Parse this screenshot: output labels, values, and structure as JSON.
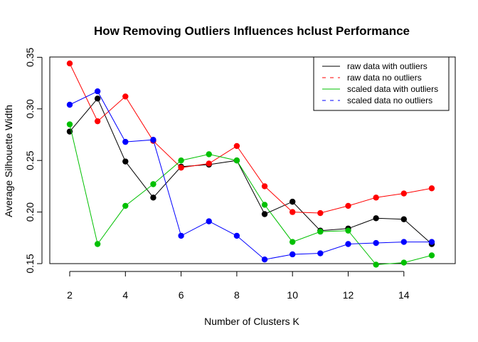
{
  "chart_data": {
    "type": "line",
    "title": "How Removing Outliers Influences hclust Performance",
    "xlabel": "Number of Clusters K",
    "ylabel": "Average Silhouette Width",
    "xlim": [
      2,
      15
    ],
    "ylim": [
      0.15,
      0.35
    ],
    "x_ticks": [
      2,
      4,
      6,
      8,
      10,
      12,
      14
    ],
    "y_ticks": [
      0.15,
      0.2,
      0.25,
      0.3,
      0.35
    ],
    "x_tick_labels": [
      "2",
      "4",
      "6",
      "8",
      "10",
      "12",
      "14"
    ],
    "y_tick_labels": [
      "0.15",
      "0.20",
      "0.25",
      "0.30",
      "0.35"
    ],
    "grid": false,
    "legend_position": "top-right",
    "x": [
      2,
      3,
      4,
      5,
      6,
      7,
      8,
      9,
      10,
      11,
      12,
      13,
      14,
      15
    ],
    "series": [
      {
        "name": "raw data with outliers",
        "color": "#000000",
        "line_style": "solid",
        "values": [
          0.278,
          0.31,
          0.249,
          0.214,
          0.244,
          0.246,
          0.25,
          0.198,
          0.21,
          0.182,
          0.184,
          0.194,
          0.193,
          0.169
        ]
      },
      {
        "name": "raw data no outliers",
        "color": "#ff0000",
        "line_style": "dashed",
        "values": [
          0.344,
          0.288,
          0.312,
          0.269,
          0.243,
          0.247,
          0.264,
          0.225,
          0.2,
          0.199,
          0.206,
          0.214,
          0.218,
          0.223
        ]
      },
      {
        "name": "scaled data with outliers",
        "color": "#00c000",
        "line_style": "solid",
        "values": [
          0.285,
          0.169,
          0.206,
          0.227,
          0.25,
          0.256,
          0.25,
          0.207,
          0.171,
          0.181,
          0.182,
          0.149,
          0.151,
          0.158
        ]
      },
      {
        "name": "scaled data no outliers",
        "color": "#0000ff",
        "line_style": "dashed",
        "values": [
          0.304,
          0.317,
          0.268,
          0.27,
          0.177,
          0.191,
          0.177,
          0.154,
          0.159,
          0.16,
          0.169,
          0.17,
          0.171,
          0.171
        ]
      }
    ]
  }
}
